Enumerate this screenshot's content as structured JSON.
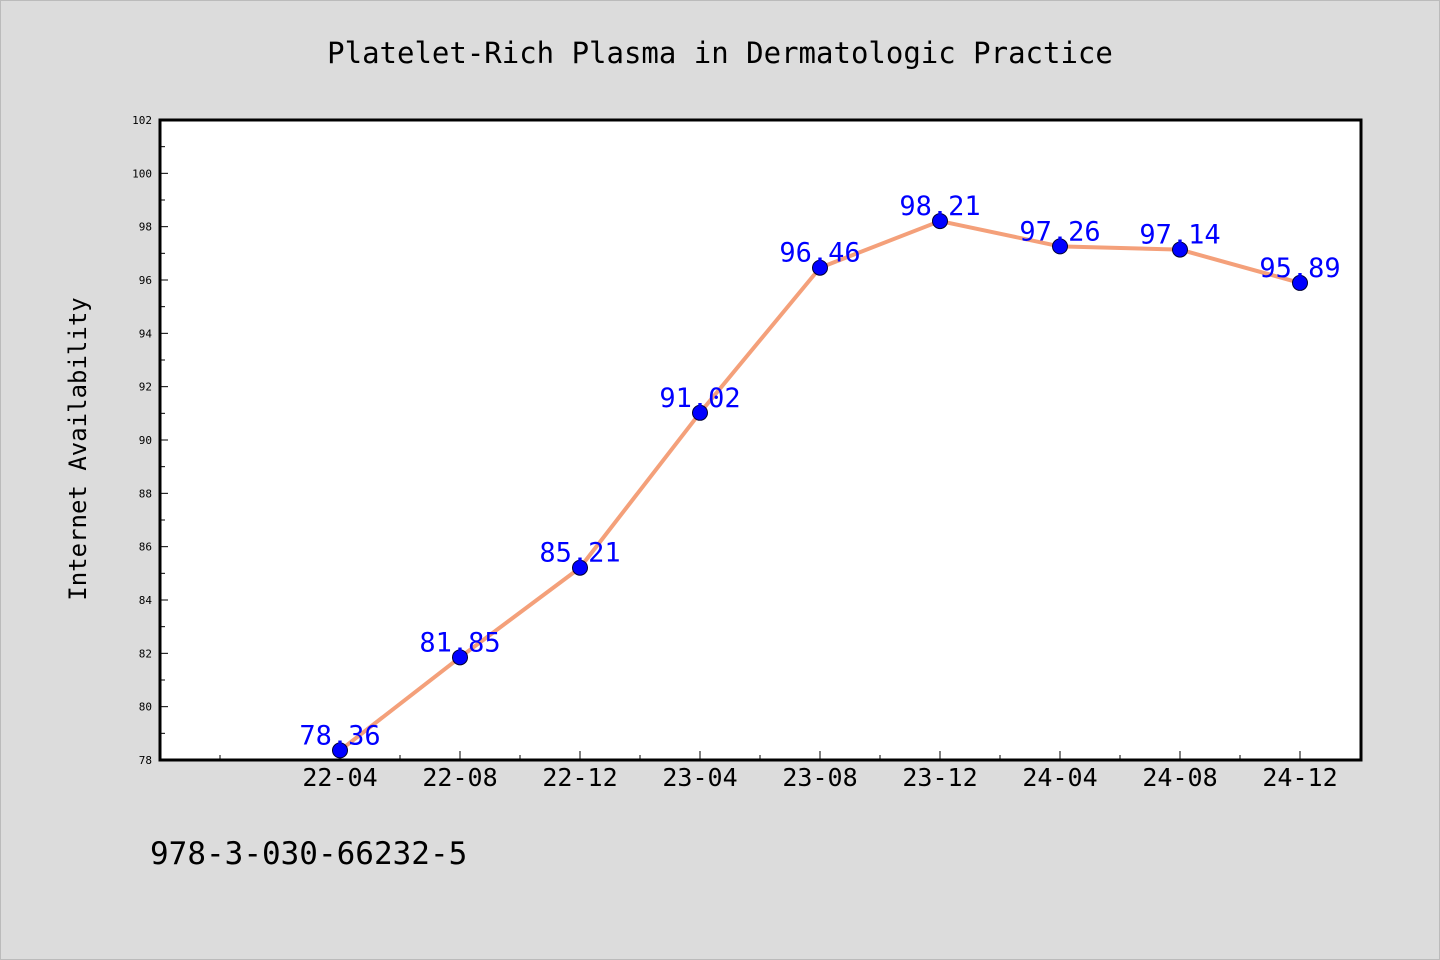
{
  "chart_data": {
    "type": "line",
    "title": "Platelet-Rich Plasma in Dermatologic Practice",
    "xlabel": "",
    "ylabel": "Internet Availability",
    "categories": [
      "22-04",
      "22-08",
      "22-12",
      "23-04",
      "23-08",
      "23-12",
      "24-04",
      "24-08",
      "24-12"
    ],
    "values": [
      78.36,
      81.85,
      85.21,
      91.02,
      96.46,
      98.21,
      97.26,
      97.14,
      95.89
    ],
    "data_labels": [
      "78.36",
      "81.85",
      "85.21",
      "91.02",
      "96.46",
      "98.21",
      "97.26",
      "97.14",
      "95.89"
    ],
    "ylim": [
      78,
      102
    ],
    "y_ticks": [
      78,
      80,
      82,
      84,
      86,
      88,
      90,
      92,
      94,
      96,
      98,
      100,
      102
    ],
    "grid": false,
    "legend": "none",
    "colors": {
      "line": "#f4a07a",
      "marker": "#0000ff",
      "label": "#0000ff",
      "plot_bg": "#ffffff",
      "page_bg": "#dcdcdc"
    }
  },
  "footer_text": "978-3-030-66232-5"
}
